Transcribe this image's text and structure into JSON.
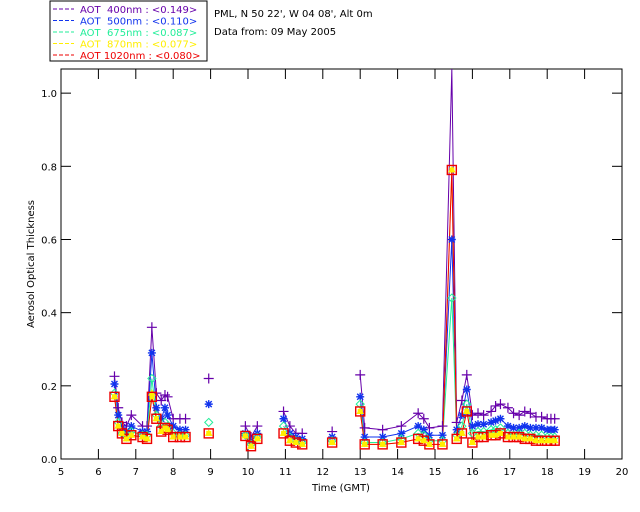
{
  "chart_data": {
    "type": "line",
    "title": "",
    "site": "PML, N 50 22', W 04 08', Alt 0m",
    "date_text": "Data from: 09 May 2005",
    "xlabel": "Time (GMT)",
    "ylabel": "Aerosol Optical Thickness",
    "xlim": [
      5,
      20
    ],
    "ylim": [
      0,
      1.066
    ],
    "xticks": [
      "5",
      "6",
      "7",
      "8",
      "9",
      "10",
      "11",
      "12",
      "13",
      "14",
      "15",
      "16",
      "17",
      "18",
      "19",
      "20"
    ],
    "yticks": [
      "0.0",
      "0.2",
      "0.4",
      "0.6",
      "0.8",
      "1.0"
    ],
    "legend_position": "top-left",
    "x": [
      6.43,
      6.53,
      6.63,
      6.75,
      6.88,
      7.18,
      7.3,
      7.43,
      7.55,
      7.68,
      7.78,
      7.85,
      8.0,
      8.18,
      8.33,
      8.95,
      9.93,
      10.08,
      10.25,
      10.95,
      11.12,
      11.28,
      11.45,
      12.25,
      13.0,
      13.12,
      13.6,
      14.1,
      14.55,
      14.7,
      14.85,
      15.2,
      15.45,
      15.58,
      15.72,
      15.85,
      16.0,
      16.15,
      16.3,
      16.5,
      16.62,
      16.75,
      16.95,
      17.1,
      17.25,
      17.4,
      17.55,
      17.7,
      17.85,
      18.0,
      18.1,
      18.2
    ],
    "gaps_after": [
      8.88,
      8.95,
      10.25,
      11.45,
      12.25,
      13.12,
      13.6,
      14.1
    ],
    "series": [
      {
        "name": "AOT  400nm : <0.149>",
        "color": "#6600aa",
        "marker": "plus",
        "values": [
          0.226,
          0.14,
          0.1,
          0.09,
          0.12,
          0.09,
          0.09,
          0.36,
          0.18,
          0.16,
          0.175,
          0.17,
          0.11,
          0.11,
          0.11,
          0.22,
          0.09,
          0.06,
          0.09,
          0.13,
          0.09,
          0.07,
          0.07,
          0.075,
          0.23,
          0.085,
          0.08,
          0.09,
          0.125,
          0.11,
          0.085,
          0.09,
          1.07,
          0.1,
          0.16,
          0.23,
          0.12,
          0.125,
          0.12,
          0.13,
          0.145,
          0.15,
          0.14,
          0.125,
          0.12,
          0.13,
          0.125,
          0.115,
          0.115,
          0.11,
          0.11,
          0.11
        ]
      },
      {
        "name": "AOT  500nm : <0.110>",
        "color": "#1133ee",
        "marker": "asterisk",
        "values": [
          0.205,
          0.12,
          0.085,
          0.075,
          0.09,
          0.075,
          0.075,
          0.29,
          0.14,
          0.11,
          0.14,
          0.12,
          0.09,
          0.08,
          0.08,
          0.15,
          0.07,
          0.05,
          0.07,
          0.11,
          0.07,
          0.06,
          0.055,
          0.06,
          0.17,
          0.06,
          0.06,
          0.07,
          0.09,
          0.08,
          0.065,
          0.065,
          0.6,
          0.08,
          0.12,
          0.19,
          0.09,
          0.095,
          0.095,
          0.1,
          0.105,
          0.11,
          0.09,
          0.085,
          0.085,
          0.09,
          0.085,
          0.085,
          0.085,
          0.08,
          0.08,
          0.08
        ]
      },
      {
        "name": "AOT  675nm : <0.087>",
        "color": "#22ee99",
        "marker": "diamond",
        "values": [
          0.18,
          0.1,
          0.07,
          0.06,
          0.075,
          0.065,
          0.065,
          0.22,
          0.12,
          0.09,
          0.1,
          0.09,
          0.07,
          0.065,
          0.065,
          0.1,
          0.065,
          0.04,
          0.06,
          0.09,
          0.06,
          0.05,
          0.045,
          0.05,
          0.15,
          0.045,
          0.045,
          0.055,
          0.07,
          0.065,
          0.05,
          0.05,
          0.44,
          0.065,
          0.09,
          0.15,
          0.07,
          0.075,
          0.075,
          0.08,
          0.08,
          0.085,
          0.07,
          0.065,
          0.07,
          0.07,
          0.065,
          0.065,
          0.065,
          0.06,
          0.06,
          0.06
        ]
      },
      {
        "name": "AOT  870nm : <0.077>",
        "color": "#ffee00",
        "marker": "triangle",
        "values": [
          0.17,
          0.09,
          0.07,
          0.055,
          0.065,
          0.06,
          0.055,
          0.18,
          0.11,
          0.075,
          0.085,
          0.08,
          0.06,
          0.06,
          0.06,
          0.07,
          0.063,
          0.035,
          0.055,
          0.07,
          0.05,
          0.045,
          0.04,
          0.045,
          0.13,
          0.04,
          0.04,
          0.045,
          0.055,
          0.05,
          0.04,
          0.04,
          0.79,
          0.055,
          0.07,
          0.13,
          0.045,
          0.06,
          0.06,
          0.065,
          0.065,
          0.07,
          0.06,
          0.06,
          0.06,
          0.055,
          0.055,
          0.05,
          0.05,
          0.05,
          0.05,
          0.05
        ]
      },
      {
        "name": "AOT 1020nm : <0.080>",
        "color": "#ee0000",
        "marker": "square",
        "values": [
          0.17,
          0.09,
          0.07,
          0.055,
          0.065,
          0.06,
          0.055,
          0.17,
          0.11,
          0.075,
          0.085,
          0.08,
          0.06,
          0.06,
          0.06,
          0.07,
          0.063,
          0.035,
          0.055,
          0.07,
          0.05,
          0.045,
          0.04,
          0.045,
          0.13,
          0.04,
          0.04,
          0.045,
          0.055,
          0.05,
          0.04,
          0.04,
          0.79,
          0.055,
          0.07,
          0.13,
          0.045,
          0.06,
          0.06,
          0.065,
          0.065,
          0.07,
          0.06,
          0.06,
          0.06,
          0.055,
          0.055,
          0.05,
          0.05,
          0.05,
          0.05,
          0.05
        ]
      }
    ]
  }
}
